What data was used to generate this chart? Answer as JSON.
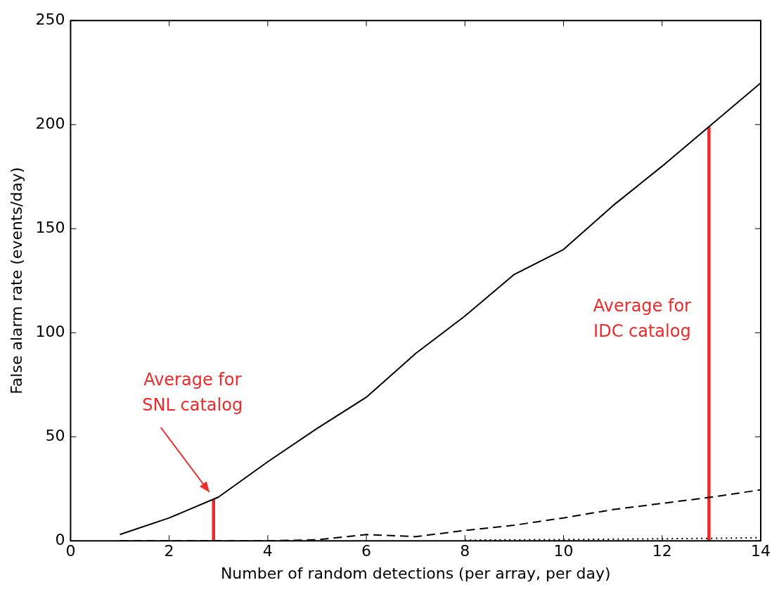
{
  "chart_data": {
    "type": "line",
    "xlabel": "Number of random detections (per array, per day)",
    "ylabel": "False alarm rate (events/day)",
    "xlim": [
      0,
      14
    ],
    "ylim": [
      0,
      250
    ],
    "xticks": [
      0,
      2,
      4,
      6,
      8,
      10,
      12,
      14
    ],
    "yticks": [
      0,
      50,
      100,
      150,
      200,
      250
    ],
    "grid": false,
    "legend": false,
    "marker": "none",
    "series": [
      {
        "color": "#000000",
        "line_style": "solid",
        "x": [
          1,
          2,
          3,
          4,
          5,
          6,
          7,
          8,
          9,
          10,
          11,
          12,
          13,
          14
        ],
        "values": [
          3,
          11,
          21,
          38,
          54,
          69,
          90,
          108,
          128,
          140,
          161,
          180,
          200,
          220
        ]
      },
      {
        "color": "#000000",
        "line_style": "dashed",
        "x": [
          1,
          2,
          3,
          4,
          5,
          6,
          7,
          8,
          9,
          10,
          11,
          12,
          13,
          14
        ],
        "values": [
          0,
          0,
          0,
          0,
          0.5,
          3,
          2,
          5,
          7.5,
          11,
          15,
          18,
          21,
          24.5
        ]
      },
      {
        "color": "#000000",
        "line_style": "dotted",
        "x": [
          8,
          9,
          10,
          11,
          12,
          13,
          14
        ],
        "values": [
          0.3,
          0.5,
          0.6,
          0.8,
          1,
          1.2,
          1.5
        ]
      },
      {
        "color": "#ee2a2a",
        "line_style": "solid",
        "x": [
          2.9,
          2.9
        ],
        "values": [
          0,
          20
        ]
      },
      {
        "color": "#ee2a2a",
        "line_style": "solid",
        "x": [
          12.95,
          12.95
        ],
        "values": [
          0,
          199
        ]
      }
    ],
    "annotations": [
      "Average for\nSNL catalog",
      "Average for\nIDC catalog"
    ]
  }
}
